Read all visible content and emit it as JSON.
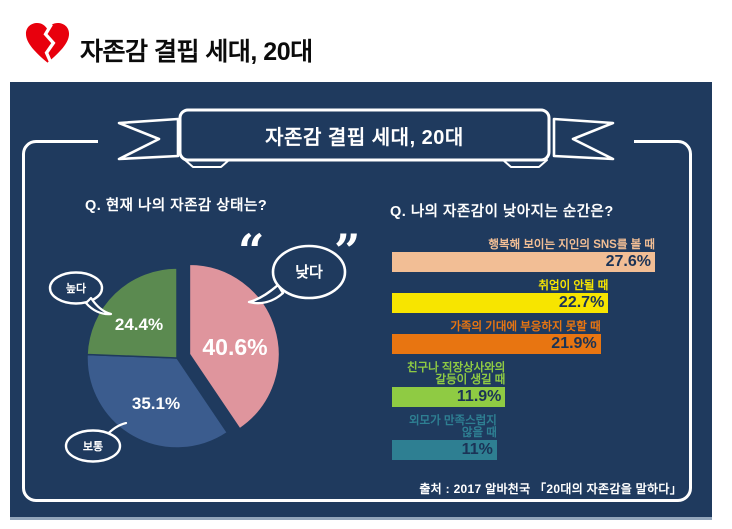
{
  "header": {
    "title": "자존감 결핍 세대, 20대",
    "icon": "broken-heart-icon",
    "accent_color": "#E8000D"
  },
  "banner": {
    "title": "자존감 결핍 세대, 20대"
  },
  "panel": {
    "background_color": "#1F3A5E"
  },
  "pie_section": {
    "question": "Q.  현재 나의 자존감 상태는?",
    "quote_open": "“",
    "quote_close": "”",
    "bubble_high": "높다",
    "bubble_mid": "보통",
    "bubble_low": "낮다"
  },
  "bar_section": {
    "question": "Q.  나의 자존감이 낮아지는 순간은?"
  },
  "source": "출처 : 2017 알바천국 「20대의 자존감을 말하다」",
  "chart_data": [
    {
      "type": "pie",
      "title": "현재 나의 자존감 상태는?",
      "labels": [
        "낮다",
        "보통",
        "높다"
      ],
      "values": [
        40.6,
        35.1,
        24.4
      ],
      "value_labels": [
        "40.6%",
        "35.1%",
        "24.4%"
      ],
      "colors": [
        "#DF959D",
        "#3B5C8E",
        "#5B8A50"
      ],
      "exploded_label": "낮다",
      "start_angle_deg": 0,
      "direction": "clockwise"
    },
    {
      "type": "bar",
      "orientation": "horizontal",
      "title": "나의 자존감이 낮아지는 순간은?",
      "categories": [
        "행복해 보이는 지인의 SNS를 볼 때",
        "취업이 안될 때",
        "가족의 기대에 부응하지 못할 때",
        "친구나 직장상사와의\n갈등이 생길 때",
        "외모가 만족스럽지\n않을 때"
      ],
      "values": [
        27.6,
        22.7,
        21.9,
        11.9,
        11
      ],
      "value_labels": [
        "27.6%",
        "22.7%",
        "21.9%",
        "11.9%",
        "11%"
      ],
      "colors": [
        "#F2BE95",
        "#F7E500",
        "#E87511",
        "#8FCB43",
        "#2E7F92"
      ],
      "value_text_color": "#1B3356",
      "xlim": [
        0,
        27.6
      ]
    }
  ]
}
